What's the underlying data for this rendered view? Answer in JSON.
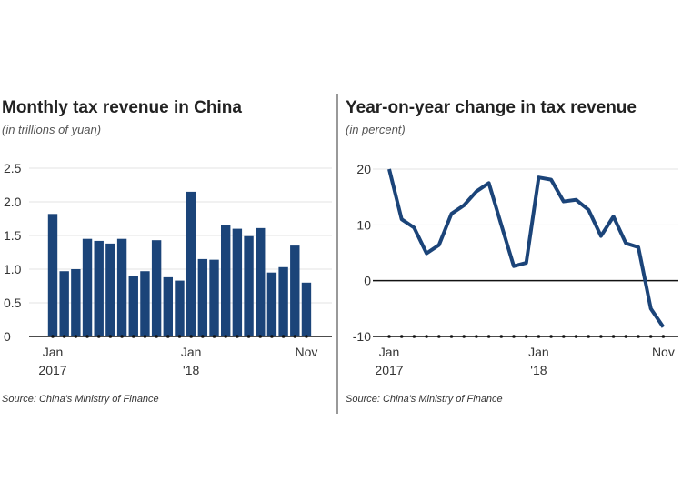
{
  "chart_data": [
    {
      "type": "bar",
      "title": "Monthly tax revenue in China",
      "subtitle": "(in trillions of yuan)",
      "source": "Source: China's Ministry of Finance",
      "categories": [
        "Jan 2017",
        "Feb 2017",
        "Mar 2017",
        "Apr 2017",
        "May 2017",
        "Jun 2017",
        "Jul 2017",
        "Aug 2017",
        "Sep 2017",
        "Oct 2017",
        "Nov 2017",
        "Dec 2017",
        "Jan 2018",
        "Feb 2018",
        "Mar 2018",
        "Apr 2018",
        "May 2018",
        "Jun 2018",
        "Jul 2018",
        "Aug 2018",
        "Sep 2018",
        "Oct 2018",
        "Nov 2018"
      ],
      "values": [
        1.82,
        0.97,
        1.0,
        1.45,
        1.42,
        1.38,
        1.45,
        0.9,
        0.97,
        1.43,
        0.88,
        0.83,
        2.15,
        1.15,
        1.14,
        1.66,
        1.6,
        1.49,
        1.61,
        0.95,
        1.03,
        1.35,
        0.8
      ],
      "ylim": [
        0,
        2.5
      ],
      "yticks": [
        "0",
        "0.5",
        "1.0",
        "1.5",
        "2.0",
        "2.5"
      ],
      "xticks": [
        {
          "index": 0,
          "label": "Jan",
          "sub": "2017"
        },
        {
          "index": 12,
          "label": "Jan",
          "sub": "'18"
        },
        {
          "index": 22,
          "label": "Nov",
          "sub": ""
        }
      ],
      "color": "#1b4479",
      "grid": true
    },
    {
      "type": "line",
      "title": "Year-on-year change in tax revenue",
      "subtitle": "(in percent)",
      "source": "Source: China's Ministry of Finance",
      "categories": [
        "Jan 2017",
        "Feb 2017",
        "Mar 2017",
        "Apr 2017",
        "May 2017",
        "Jun 2017",
        "Jul 2017",
        "Aug 2017",
        "Sep 2017",
        "Oct 2017",
        "Nov 2017",
        "Dec 2017",
        "Jan 2018",
        "Feb 2018",
        "Mar 2018",
        "Apr 2018",
        "May 2018",
        "Jun 2018",
        "Jul 2018",
        "Aug 2018",
        "Sep 2018",
        "Oct 2018",
        "Nov 2018"
      ],
      "values": [
        20,
        11,
        9.5,
        4.9,
        6.4,
        12,
        13.5,
        16,
        17.5,
        10,
        2.6,
        3.2,
        18.5,
        18.1,
        14.2,
        14.5,
        12.7,
        8,
        11.5,
        6.7,
        6,
        -5,
        -8.3
      ],
      "ylim": [
        -10,
        20
      ],
      "yticks": [
        "-10",
        "0",
        "10",
        "20"
      ],
      "xticks": [
        {
          "index": 0,
          "label": "Jan",
          "sub": "2017"
        },
        {
          "index": 12,
          "label": "Jan",
          "sub": "'18"
        },
        {
          "index": 22,
          "label": "Nov",
          "sub": ""
        }
      ],
      "color": "#1b4479",
      "grid": true
    }
  ]
}
